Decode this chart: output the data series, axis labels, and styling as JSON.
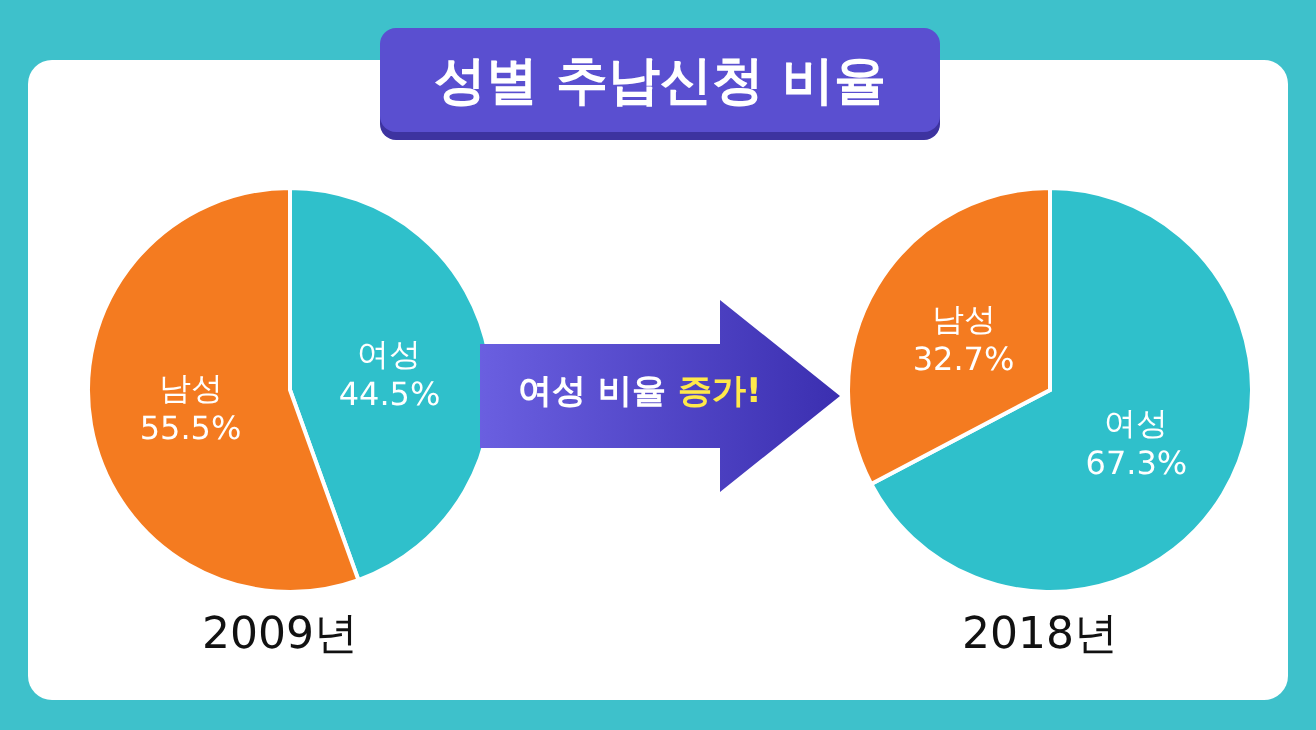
{
  "chart_data": [
    {
      "type": "pie",
      "title": "성별 추납신청 비율",
      "xlabel": "2009년",
      "categories": [
        "여성",
        "남성"
      ],
      "values": [
        44.5,
        55.5
      ],
      "colors": [
        "#2fc0cb",
        "#f47b20"
      ],
      "value_labels": [
        "44.5%",
        "55.5%"
      ],
      "annotations": [
        "여성 비율 증가!"
      ]
    },
    {
      "type": "pie",
      "xlabel": "2018년",
      "categories": [
        "여성",
        "남성"
      ],
      "values": [
        67.3,
        32.7
      ],
      "colors": [
        "#2fc0cb",
        "#f47b20"
      ],
      "value_labels": [
        "67.3%",
        "32.7%"
      ]
    }
  ]
}
